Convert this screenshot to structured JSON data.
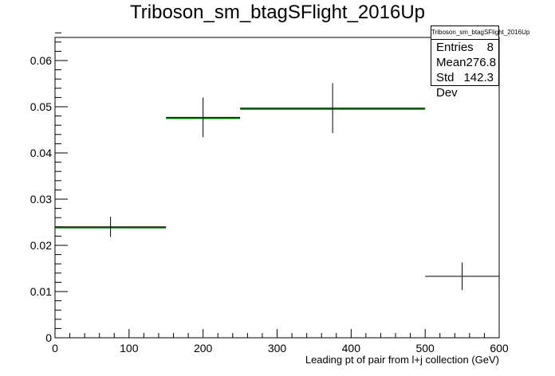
{
  "chart_data": {
    "type": "histogram",
    "title": "Triboson_sm_btagSFlight_2016Up",
    "xlabel": "Leading pt of pair from l+j collection (GeV)",
    "ylabel": "",
    "xlim": [
      0,
      600
    ],
    "ylim": [
      0,
      0.065
    ],
    "x_ticks": [
      0,
      100,
      200,
      300,
      400,
      500,
      600
    ],
    "y_ticks": [
      0,
      0.01,
      0.02,
      0.03,
      0.04,
      0.05,
      0.06
    ],
    "bins": [
      {
        "xlow": 0,
        "xhigh": 150,
        "value": 0.024,
        "err": 0.0022
      },
      {
        "xlow": 150,
        "xhigh": 250,
        "value": 0.0477,
        "err": 0.0043
      },
      {
        "xlow": 250,
        "xhigh": 500,
        "value": 0.0497,
        "err": 0.0054
      },
      {
        "xlow": 500,
        "xhigh": 600,
        "value": 0.0133,
        "err": 0.003
      }
    ],
    "overlay": {
      "color": "#008000",
      "bins": [
        {
          "xlow": 0,
          "xhigh": 150,
          "value": 0.024
        },
        {
          "xlow": 150,
          "xhigh": 250,
          "value": 0.0477
        },
        {
          "xlow": 250,
          "xhigh": 500,
          "value": 0.0497
        }
      ]
    },
    "stats_box": {
      "title": "Triboson_sm_btagSFlight_2016Up",
      "entries_label": "Entries",
      "entries": "8",
      "mean_label": "Mean",
      "mean": "276.8",
      "stddev_label": "Std Dev",
      "stddev": "142.3"
    }
  }
}
